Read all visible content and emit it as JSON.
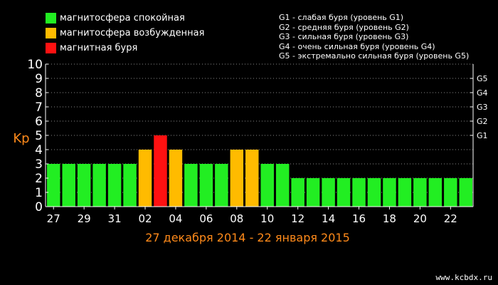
{
  "legend": [
    {
      "label": "магнитосфера спокойная",
      "color": "#22ee22"
    },
    {
      "label": "магнитосфера возбужденная",
      "color": "#ffbb00"
    },
    {
      "label": "магнитная буря",
      "color": "#ff1111"
    }
  ],
  "g_levels": [
    "G1 - слабая буря (уровень G1)",
    "G2 - средняя буря (уровень G2)",
    "G3 - сильная буря (уровень G3)",
    "G4 - очень сильная буря (уровень G4)",
    "G5 - экстремально сильная буря (уровень G5)"
  ],
  "chart_data": {
    "type": "bar",
    "ylabel": "Kp",
    "xlabel": "27 декабря 2014 - 22 января 2015",
    "ylim": [
      0,
      10
    ],
    "yticks": [
      0,
      1,
      2,
      3,
      4,
      5,
      6,
      7,
      8,
      9,
      10
    ],
    "right_axis_labels": [
      {
        "label": "G1",
        "value": 5
      },
      {
        "label": "G2",
        "value": 6
      },
      {
        "label": "G3",
        "value": 7
      },
      {
        "label": "G4",
        "value": 8
      },
      {
        "label": "G5",
        "value": 9
      }
    ],
    "x_tick_labels": [
      "27",
      "29",
      "31",
      "02",
      "04",
      "06",
      "08",
      "10",
      "12",
      "14",
      "16",
      "18",
      "20",
      "22"
    ],
    "values": [
      3,
      3,
      3,
      3,
      3,
      3,
      4,
      5,
      4,
      3,
      3,
      3,
      4,
      4,
      3,
      3,
      2,
      2,
      2,
      2,
      2,
      2,
      2,
      2,
      2,
      2,
      2,
      2
    ],
    "grid": true,
    "colors": {
      "quiet": "#22ee22",
      "disturbed": "#ffbb00",
      "storm": "#ff1111",
      "axis_title": "#ff8a1a",
      "grid": "#888888"
    }
  },
  "watermark": "www.kcbdx.ru"
}
